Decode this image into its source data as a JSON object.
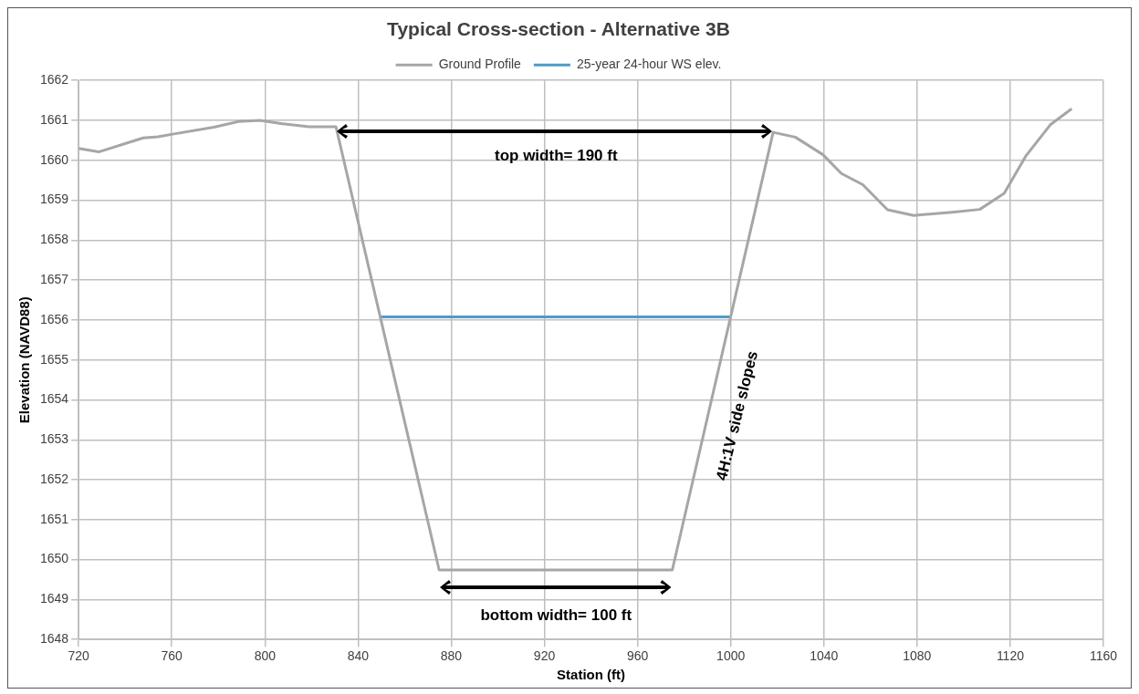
{
  "chart_data": {
    "type": "line",
    "title": "Typical Cross-section - Alternative 3B",
    "xlabel": "Station (ft)",
    "ylabel": "Elevation (NAVD88)",
    "series": [
      {
        "name": "Ground Profile",
        "color": "#a6a6a6",
        "x": [
          720,
          728.6,
          747.7,
          754,
          760.9,
          778,
          788.6,
          797.8,
          807,
          818.9,
          830.5,
          874.8,
          974.9,
          1018.2,
          1027.7,
          1039.6,
          1047.5,
          1056.7,
          1067.3,
          1078.5,
          1095,
          1106.9,
          1117.4,
          1126.6,
          1137.2,
          1146.4
        ],
        "values": [
          1660.3,
          1660.21,
          1660.56,
          1660.59,
          1660.66,
          1660.83,
          1660.97,
          1661,
          1660.92,
          1660.84,
          1660.84,
          1649.74,
          1649.74,
          1660.7,
          1660.58,
          1660.14,
          1659.67,
          1659.39,
          1658.76,
          1658.62,
          1658.7,
          1658.77,
          1659.17,
          1660.1,
          1660.89,
          1661.29
        ]
      },
      {
        "name": "25-year 24-hour WS elev.",
        "color": "#4f9bc8",
        "x": [
          849.2,
          999.7
        ],
        "values": [
          1656.08,
          1656.08
        ]
      }
    ],
    "xlim": [
      720,
      1160
    ],
    "xticks": [
      720,
      760,
      800,
      840,
      880,
      920,
      960,
      1000,
      1040,
      1080,
      1120,
      1160
    ],
    "ylim": [
      1648,
      1662
    ],
    "yticks": [
      1648,
      1649,
      1650,
      1651,
      1652,
      1653,
      1654,
      1655,
      1656,
      1657,
      1658,
      1659,
      1660,
      1661,
      1662
    ],
    "grid": true,
    "legend": "top",
    "marker": "none",
    "line_style": "solid",
    "annotations": [
      "top width= 190 ft",
      "bottom width= 100 ft",
      "4H:1V side slopes"
    ]
  }
}
